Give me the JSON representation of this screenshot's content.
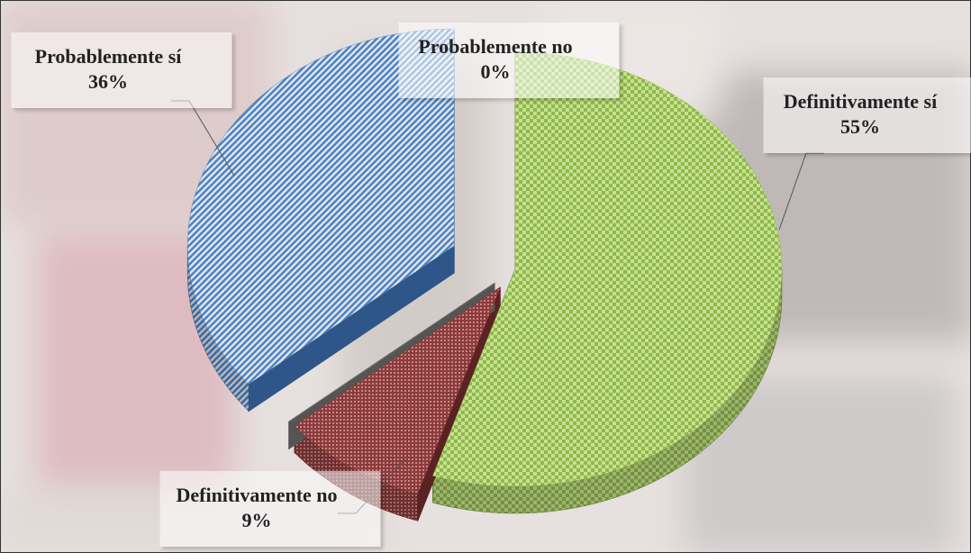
{
  "chart_data": {
    "type": "pie",
    "categories": [
      "Definitivamente sí",
      "Definitivamente no",
      "Probablemente no",
      "Probablemente sí"
    ],
    "values": [
      55,
      9,
      0,
      36
    ],
    "value_labels": [
      "55%",
      "9%",
      "0%",
      "36%"
    ],
    "colors": [
      "#9bbb59",
      "#8c3b3b",
      "#7f7f7f",
      "#4f81bd"
    ]
  }
}
